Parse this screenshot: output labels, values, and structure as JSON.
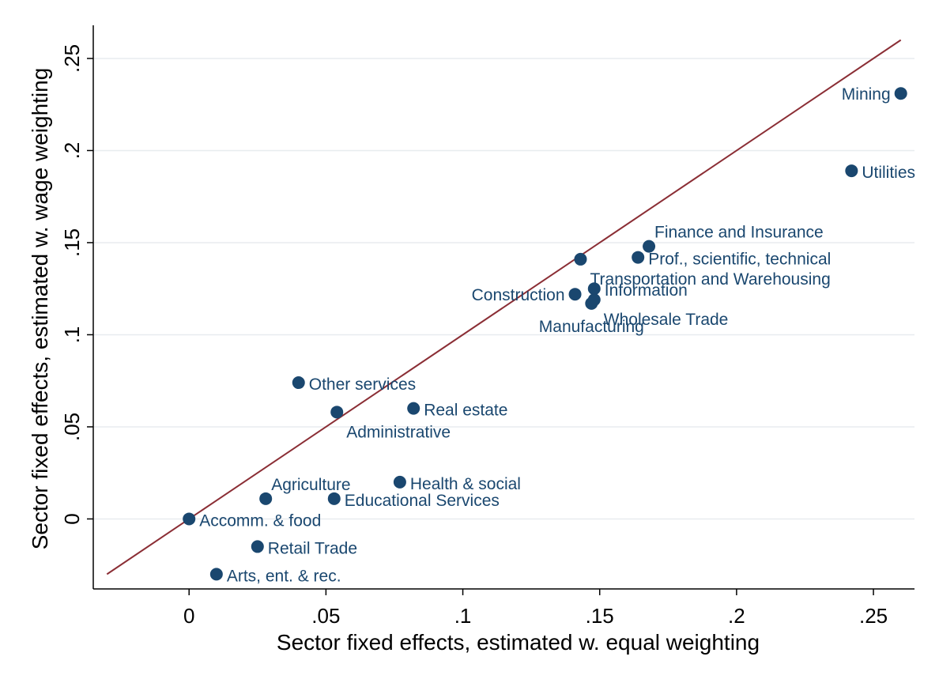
{
  "chart_data": {
    "type": "scatter",
    "xlabel": "Sector fixed effects, estimated w. equal weighting",
    "ylabel": "Sector fixed effects, estimated w. wage weighting",
    "xlim": [
      -0.035,
      0.265
    ],
    "ylim": [
      -0.038,
      0.268
    ],
    "x_ticks": [
      0,
      0.05,
      0.1,
      0.15,
      0.2,
      0.25
    ],
    "x_tick_labels": [
      "0",
      ".05",
      ".1",
      ".15",
      ".2",
      ".25"
    ],
    "y_ticks": [
      0,
      0.05,
      0.1,
      0.15,
      0.2,
      0.25
    ],
    "y_tick_labels": [
      "0",
      ".05",
      ".1",
      ".15",
      ".2",
      ".25"
    ],
    "grid": "horizontal",
    "reference_line": {
      "type": "45-degree",
      "x": [
        -0.03,
        0.26
      ],
      "y": [
        -0.03,
        0.26
      ],
      "color": "#8b2e35"
    },
    "marker_color": "#1a476f",
    "points": [
      {
        "label": "Mining",
        "x": 0.26,
        "y": 0.231,
        "label_side": "left"
      },
      {
        "label": "Utilities",
        "x": 0.242,
        "y": 0.189,
        "label_side": "right"
      },
      {
        "label": "Finance and Insurance",
        "x": 0.168,
        "y": 0.148,
        "label_side": "above-right"
      },
      {
        "label": "Prof., scientific, technical",
        "x": 0.164,
        "y": 0.142,
        "label_side": "right"
      },
      {
        "label": "Transportation and Warehousing",
        "x": 0.143,
        "y": 0.141,
        "label_side": "below-right"
      },
      {
        "label": "Information",
        "x": 0.148,
        "y": 0.125,
        "label_side": "right"
      },
      {
        "label": "Construction",
        "x": 0.141,
        "y": 0.122,
        "label_side": "left"
      },
      {
        "label": "Wholesale Trade",
        "x": 0.148,
        "y": 0.119,
        "label_side": "below-right"
      },
      {
        "label": "Manufacturing",
        "x": 0.147,
        "y": 0.117,
        "label_side": "below"
      },
      {
        "label": "Other services",
        "x": 0.04,
        "y": 0.074,
        "label_side": "right"
      },
      {
        "label": "Real estate",
        "x": 0.082,
        "y": 0.06,
        "label_side": "right"
      },
      {
        "label": "Administrative",
        "x": 0.054,
        "y": 0.058,
        "label_side": "below-right"
      },
      {
        "label": "Health & social",
        "x": 0.077,
        "y": 0.02,
        "label_side": "right"
      },
      {
        "label": "Agriculture",
        "x": 0.028,
        "y": 0.011,
        "label_side": "above-right"
      },
      {
        "label": "Educational Services",
        "x": 0.053,
        "y": 0.011,
        "label_side": "right"
      },
      {
        "label": "Accomm. & food",
        "x": 0.0,
        "y": 0.0,
        "label_side": "right"
      },
      {
        "label": "Retail Trade",
        "x": 0.025,
        "y": -0.015,
        "label_side": "right"
      },
      {
        "label": "Arts, ent. & rec.",
        "x": 0.01,
        "y": -0.03,
        "label_side": "right"
      }
    ]
  }
}
